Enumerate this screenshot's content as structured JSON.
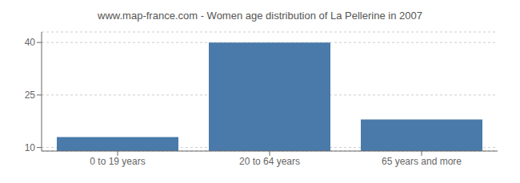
{
  "chart_data": {
    "type": "bar",
    "title": "www.map-france.com - Women age distribution of La Pellerine in 2007",
    "categories": [
      "0 to 19 years",
      "20 to 64 years",
      "65 years and more"
    ],
    "values": [
      13,
      40,
      18
    ],
    "color": "#4a7aaa",
    "ylim": [
      9,
      43
    ],
    "yticks": [
      10,
      25,
      40
    ],
    "grid": true
  }
}
